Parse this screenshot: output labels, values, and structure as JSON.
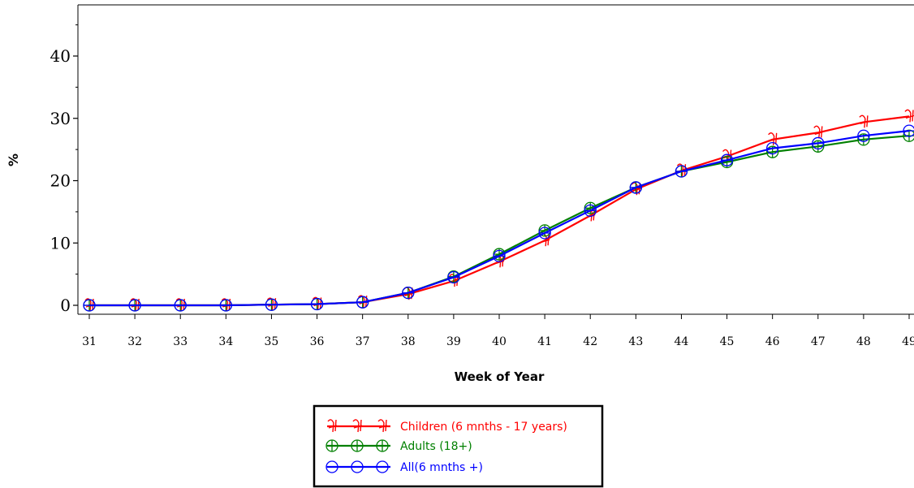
{
  "chart_data": {
    "type": "line",
    "xlabel": "Week of Year",
    "ylabel": "%",
    "x": [
      31,
      32,
      33,
      34,
      35,
      36,
      37,
      38,
      39,
      40,
      41,
      42,
      43,
      44,
      45,
      46,
      47,
      48,
      49
    ],
    "xlim": [
      31,
      49
    ],
    "ylim": [
      0,
      45
    ],
    "yticks": [
      0,
      10,
      20,
      30,
      40
    ],
    "grid": false,
    "legend_position": "bottom",
    "series": [
      {
        "name": "Children (6 mnths - 17 years)",
        "color": "#ff0000",
        "marker": "cross-glyph",
        "values": [
          0,
          0,
          0,
          0,
          0.1,
          0.2,
          0.5,
          1.8,
          3.9,
          7.0,
          10.4,
          14.4,
          18.6,
          21.6,
          23.9,
          26.6,
          27.7,
          29.4,
          30.3
        ]
      },
      {
        "name": "Adults (18+)",
        "color": "#008000",
        "marker": "circle-plus",
        "values": [
          0,
          0,
          0,
          0,
          0.1,
          0.2,
          0.5,
          2.0,
          4.6,
          8.2,
          12.0,
          15.6,
          18.9,
          21.5,
          23.0,
          24.6,
          25.5,
          26.6,
          27.2
        ]
      },
      {
        "name": "All(6 mnths +)",
        "color": "#0000ff",
        "marker": "circle-minus",
        "values": [
          0,
          0,
          0,
          0,
          0.1,
          0.2,
          0.5,
          2.0,
          4.5,
          7.9,
          11.6,
          15.2,
          18.9,
          21.5,
          23.3,
          25.2,
          26.0,
          27.2,
          28.0
        ]
      }
    ]
  }
}
